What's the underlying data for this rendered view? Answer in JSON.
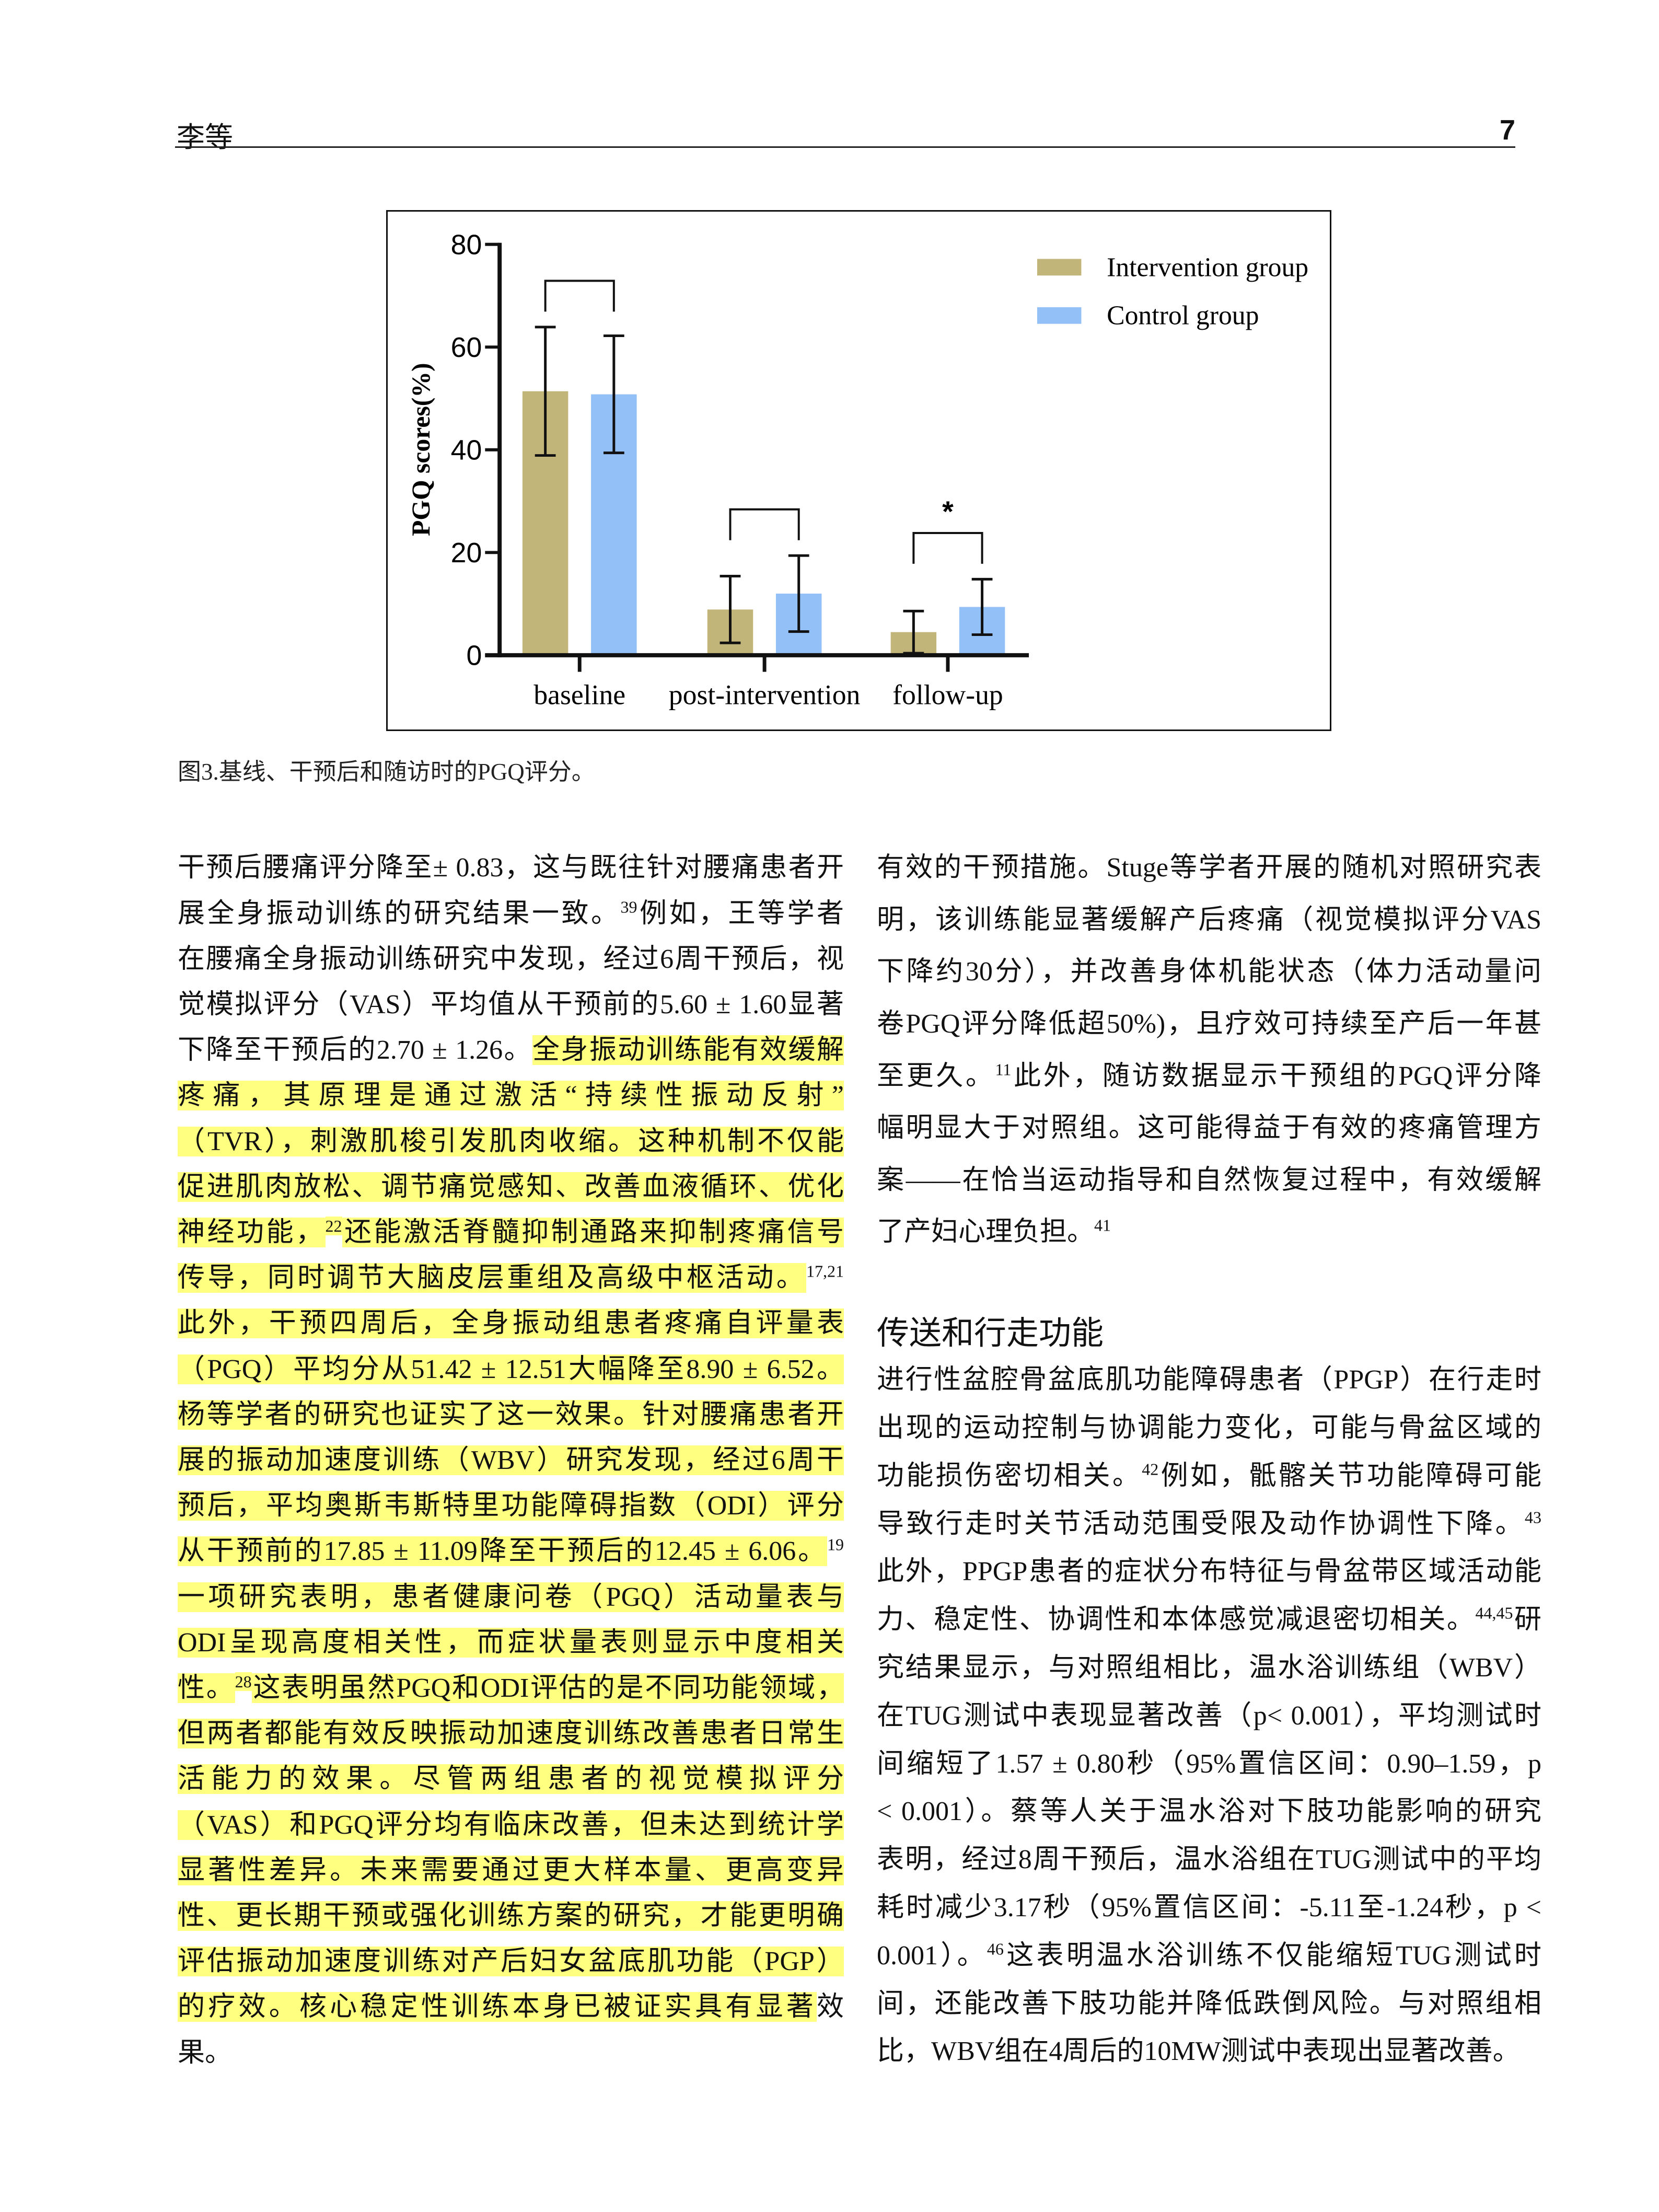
{
  "header": {
    "author": "李等",
    "page_number": "7"
  },
  "figure": {
    "caption": "图3.基线、干预后和随访时的PGQ评分。"
  },
  "chart_data": {
    "type": "bar",
    "ylabel": "PGQ scores(%)",
    "xlabel": "",
    "categories": [
      "baseline",
      "post-intervention",
      "follow-up"
    ],
    "ylim": [
      0,
      80
    ],
    "yticks": [
      0,
      20,
      40,
      60,
      80
    ],
    "ytick_labels": [
      "0",
      "20",
      "40",
      "60",
      "80"
    ],
    "legend_placement": "top-right",
    "grid": false,
    "series": [
      {
        "name": "Intervention group",
        "color": "#c2b57a",
        "values": [
          51.4,
          8.9,
          4.5
        ],
        "errors": [
          12.5,
          6.5,
          4.1
        ]
      },
      {
        "name": "Control group",
        "color": "#94c0f8",
        "values": [
          50.8,
          12.0,
          9.4
        ],
        "errors": [
          11.4,
          7.4,
          5.4
        ]
      }
    ],
    "significance": [
      "",
      "",
      "*"
    ]
  },
  "left_column": {
    "paragraphs": [
      {
        "lines": [
          [
            {
              "t": "干预后腰痛评分降至± 0.83，这与既往针对腰痛患者开"
            }
          ],
          [
            {
              "t": "展全身振动训练的研究结果一致。"
            },
            {
              "t": "39",
              "sup": true
            },
            {
              "t": "例如，王等学者"
            }
          ],
          [
            {
              "t": "在腰痛全身振动训练研究中发现，经过6周干预后，视"
            }
          ],
          [
            {
              "t": "觉模拟评分（VAS）平均值从干预前的5.60 ± 1.60显著"
            }
          ],
          [
            {
              "t": "下降至干预后的2.70 ± 1.26。"
            },
            {
              "t": "全身振动训练能有效缓解",
              "hl": true
            }
          ],
          [
            {
              "t": "疼痛，其原理是通过激活“持续性振动反射”",
              "hl": true
            }
          ],
          [
            {
              "t": "（TVR），刺激肌梭引发肌肉收缩。这种机制不仅能",
              "hl": true
            }
          ],
          [
            {
              "t": "促进肌肉放松、调节痛觉感知、改善血液循环、优化",
              "hl": true
            }
          ],
          [
            {
              "t": "神经功能，",
              "hl": true
            },
            {
              "t": "22",
              "sup": true,
              "hl": true
            },
            {
              "t": "还能激活脊髓抑制通路来抑制疼痛信号",
              "hl": true
            }
          ],
          [
            {
              "t": "传导，同时调节大脑皮层重组及高级中枢活动。",
              "hl": true
            },
            {
              "t": "17,21",
              "sup": true
            }
          ],
          [
            {
              "t": "此外，干预四周后，全身振动组患者疼痛自评量表",
              "hl": true
            }
          ],
          [
            {
              "t": "（PGQ）平均分从51.42 ± 12.51大幅降至8.90 ± 6.52。",
              "hl": true
            }
          ],
          [
            {
              "t": "杨等学者的研究也证实了这一效果。针对腰痛患者开",
              "hl": true
            }
          ],
          [
            {
              "t": "展的振动加速度训练（WBV）研究发现，经过6周干",
              "hl": true
            }
          ],
          [
            {
              "t": "预后，平均奥斯韦斯特里功能障碍指数（ODI）评分",
              "hl": true
            }
          ],
          [
            {
              "t": "从干预前的17.85 ± 11.09降至干预后的12.45 ± 6.06。",
              "hl": true
            },
            {
              "t": "19",
              "sup": true
            }
          ],
          [
            {
              "t": "一项研究表明，患者健康问卷（PGQ）活动量表与",
              "hl": true
            }
          ],
          [
            {
              "t": "ODI呈现高度相关性，而症状量表则显示中度相关",
              "hl": true
            }
          ],
          [
            {
              "t": "性。",
              "hl": true
            },
            {
              "t": "28",
              "sup": true,
              "hl": true
            },
            {
              "t": "这表明虽然PGQ和ODI评估的是不同功能领域，",
              "hl": true
            }
          ],
          [
            {
              "t": "但两者都能有效反映振动加速度训练改善患者日常生",
              "hl": true
            }
          ],
          [
            {
              "t": "活能力的效果。尽管两组患者的视觉模拟评分",
              "hl": true
            }
          ],
          [
            {
              "t": "（VAS）和PGQ评分均有临床改善，但未达到统计学",
              "hl": true
            }
          ],
          [
            {
              "t": "显著性差异。未来需要通过更大样本量、更高变异",
              "hl": true
            }
          ],
          [
            {
              "t": "性、更长期干预或强化训练方案的研究，才能更明确",
              "hl": true
            }
          ],
          [
            {
              "t": "评估振动加速度训练对产后妇女盆底肌功能（PGP）",
              "hl": true
            }
          ],
          [
            {
              "t": "的疗效。核心稳定性训练本身已被证实具有显著",
              "hl": true
            },
            {
              "t": "效"
            }
          ],
          [
            {
              "t": "果。"
            }
          ]
        ]
      }
    ]
  },
  "right_column": {
    "paragraphs": [
      {
        "lines": [
          [
            {
              "t": "有效的干预措施。Stuge等学者开展的随机对照研究表"
            }
          ],
          [
            {
              "t": "明，该训练能显著缓解产后疼痛（视觉模拟评分VAS"
            }
          ],
          [
            {
              "t": "下降约30分），并改善身体机能状态（体力活动量问"
            }
          ],
          [
            {
              "t": "卷PGQ评分降低超50%)，且疗效可持续至产后一年甚"
            }
          ],
          [
            {
              "t": "至更久。"
            },
            {
              "t": "11",
              "sup": true
            },
            {
              "t": "此外，随访数据显示干预组的PGQ评分降"
            }
          ],
          [
            {
              "t": "幅明显大于对照组。这可能得益于有效的疼痛管理方"
            }
          ],
          [
            {
              "t": "案——在恰当运动指导和自然恢复过程中，有效缓解"
            }
          ],
          [
            {
              "t": "了产妇心理负担。"
            },
            {
              "t": "41",
              "sup": true
            }
          ]
        ]
      },
      {
        "lines": [
          [
            {
              "t": "进行性盆腔骨盆底肌功能障碍患者（PPGP）在行走时"
            }
          ],
          [
            {
              "t": "出现的运动控制与协调能力变化，可能与骨盆区域的"
            }
          ],
          [
            {
              "t": "功能损伤密切相关。"
            },
            {
              "t": "42",
              "sup": true
            },
            {
              "t": "例如，骶髂关节功能障碍可能"
            }
          ],
          [
            {
              "t": "导致行走时关节活动范围受限及动作协调性下降。"
            },
            {
              "t": "43",
              "sup": true
            }
          ],
          [
            {
              "t": "此外，PPGP患者的症状分布特征与骨盆带区域活动能"
            }
          ],
          [
            {
              "t": "力、稳定性、协调性和本体感觉减退密切相关。"
            },
            {
              "t": "44,45",
              "sup": true
            },
            {
              "t": "研"
            }
          ],
          [
            {
              "t": "究结果显示，与对照组相比，温水浴训练组（WBV）"
            }
          ],
          [
            {
              "t": "在TUG测试中表现显著改善（p< 0.001），平均测试时"
            }
          ],
          [
            {
              "t": "间缩短了1.57 ± 0.80秒（95%置信区间：0.90–1.59，p"
            }
          ],
          [
            {
              "t": "< 0.001）。蔡等人关于温水浴对下肢功能影响的研究"
            }
          ],
          [
            {
              "t": "表明，经过8周干预后，温水浴组在TUG测试中的平均"
            }
          ],
          [
            {
              "t": "耗时减少3.17秒（95%置信区间：-5.11至-1.24秒，p <"
            }
          ],
          [
            {
              "t": "0.001）。"
            },
            {
              "t": "46",
              "sup": true
            },
            {
              "t": "这表明温水浴训练不仅能缩短TUG测试时"
            }
          ],
          [
            {
              "t": "间，还能改善下肢功能并降低跌倒风险。与对照组相"
            }
          ],
          [
            {
              "t": "比，WBV组在4周后的10MW测试中表现出显著改善。"
            }
          ]
        ]
      }
    ],
    "heading": "传送和行走功能"
  }
}
